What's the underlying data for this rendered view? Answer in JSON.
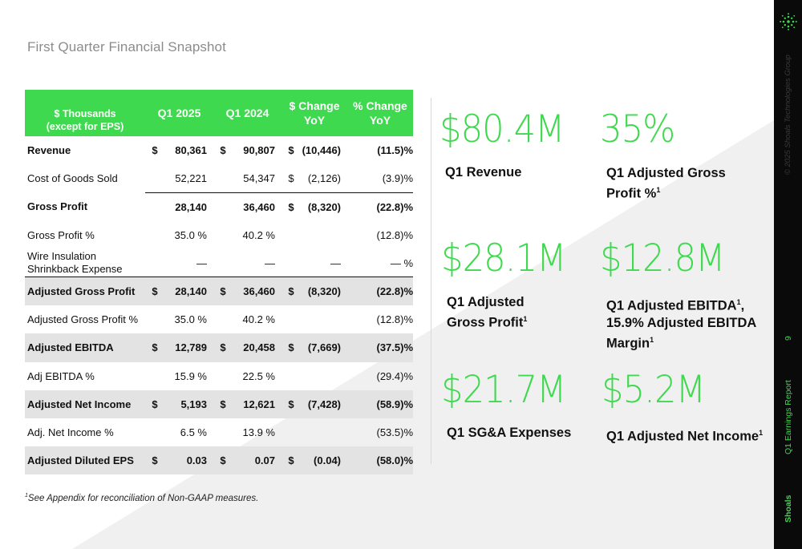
{
  "page": {
    "title": "First Quarter Financial Snapshot"
  },
  "table": {
    "headers": {
      "label": "$ Thousands\n(except for EPS)",
      "q1_2025": "Q1 2025",
      "q1_2024": "Q1 2024",
      "change_usd": "$ Change YoY",
      "change_pct": "% Change YoY"
    },
    "rows": [
      {
        "label": "Revenue",
        "c1": "$",
        "v1": "80,361",
        "c2": "$",
        "v2": "90,807",
        "c3": "$",
        "v3": "(10,446)",
        "pct": "(11.5)%"
      },
      {
        "label": "Cost of Goods Sold",
        "c1": "",
        "v1": "52,221",
        "c2": "",
        "v2": "54,347",
        "c3": "$",
        "v3": "(2,126)",
        "pct": "(3.9)%"
      },
      {
        "label": "Gross Profit",
        "c1": "",
        "v1": "28,140",
        "c2": "",
        "v2": "36,460",
        "c3": "$",
        "v3": "(8,320)",
        "pct": "(22.8)%"
      },
      {
        "label": "Gross Profit %",
        "c1": "",
        "v1": "35.0 %",
        "c2": "",
        "v2": "40.2 %",
        "c3": "",
        "v3": "",
        "pct": "(12.8)%"
      },
      {
        "label": "Wire Insulation Shrinkback Expense",
        "c1": "",
        "v1": "—",
        "c2": "",
        "v2": "—",
        "c3": "",
        "v3": "—",
        "pct": "— %"
      },
      {
        "label": "Adjusted Gross Profit",
        "c1": "$",
        "v1": "28,140",
        "c2": "$",
        "v2": "36,460",
        "c3": "$",
        "v3": "(8,320)",
        "pct": "(22.8)%"
      },
      {
        "label": "Adjusted Gross Profit %",
        "c1": "",
        "v1": "35.0 %",
        "c2": "",
        "v2": "40.2 %",
        "c3": "",
        "v3": "",
        "pct": "(12.8)%"
      },
      {
        "label": "Adjusted EBITDA",
        "c1": "$",
        "v1": "12,789",
        "c2": "$",
        "v2": "20,458",
        "c3": "$",
        "v3": "(7,669)",
        "pct": "(37.5)%"
      },
      {
        "label": "Adj EBITDA %",
        "c1": "",
        "v1": "15.9 %",
        "c2": "",
        "v2": "22.5 %",
        "c3": "",
        "v3": "",
        "pct": "(29.4)%"
      },
      {
        "label": "Adjusted Net Income",
        "c1": "$",
        "v1": "5,193",
        "c2": "$",
        "v2": "12,621",
        "c3": "$",
        "v3": "(7,428)",
        "pct": "(58.9)%"
      },
      {
        "label": "Adj. Net Income %",
        "c1": "",
        "v1": "6.5 %",
        "c2": "",
        "v2": "13.9 %",
        "c3": "",
        "v3": "",
        "pct": "(53.5)%"
      },
      {
        "label": "Adjusted Diluted EPS",
        "c1": "$",
        "v1": "0.03",
        "c2": "$",
        "v2": "0.07",
        "c3": "$",
        "v3": "(0.04)",
        "pct": "(58.0)%"
      }
    ]
  },
  "footnote": {
    "mark": "1",
    "text": "See Appendix for reconciliation of Non-GAAP measures."
  },
  "kpis": [
    {
      "value": "$80.4M",
      "label": "Q1 Revenue",
      "sup": ""
    },
    {
      "value": "35%",
      "label": "Q1 Adjusted Gross Profit %",
      "sup": "1"
    },
    {
      "value": "$28.1M",
      "label": "Q1 Adjusted Gross Profit",
      "sup": "1"
    },
    {
      "value": "$12.8M",
      "label_a": "Q1 Adjusted EBITDA",
      "sup_a": "1",
      "label_b": ",",
      "label_c": "15.9% Adjusted EBITDA Margin",
      "sup": "1"
    },
    {
      "value": "$21.7M",
      "label": "Q1 SG&A Expenses",
      "sup": ""
    },
    {
      "value": "$5.2M",
      "label": "Q1 Adjusted Net Income",
      "sup": "1"
    }
  ],
  "sidebar": {
    "copyright": "© 2025 Shoals Technologies Group",
    "page_number": "9",
    "report": "Q1 Earnings Report",
    "brand": "Shoals"
  },
  "colors": {
    "accent": "#3fd94f",
    "shade": "#e3e3e3",
    "sidebar": "#0a0a0a"
  },
  "icons": {
    "logo": "shoals-starburst-logo-icon"
  }
}
